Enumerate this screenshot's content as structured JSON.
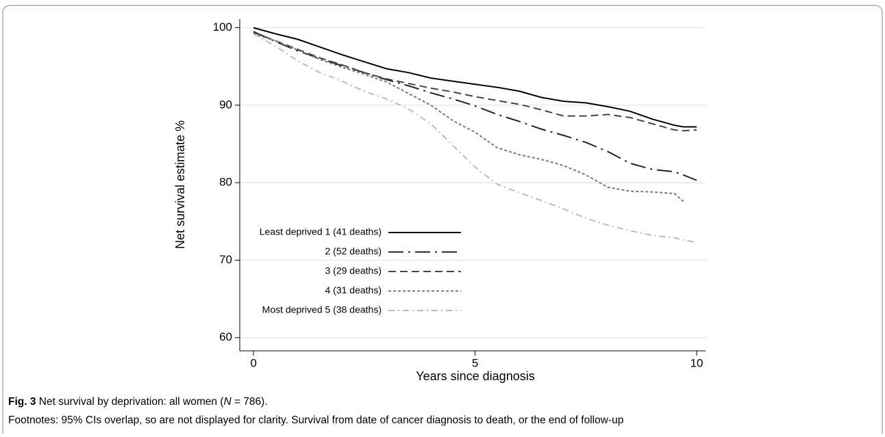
{
  "chart_data": {
    "type": "line",
    "xlabel": "Years since diagnosis",
    "ylabel": "Net survival estimate %",
    "x": [
      0,
      0.5,
      1,
      1.5,
      2,
      2.5,
      3,
      3.5,
      4,
      4.5,
      5,
      5.5,
      6,
      6.5,
      7,
      7.5,
      8,
      8.5,
      9,
      9.5,
      9.7,
      10
    ],
    "series": [
      {
        "name": "Least deprived 1 (41 deaths)",
        "color": "#000000",
        "values": [
          100,
          99.2,
          98.5,
          97.5,
          96.5,
          95.6,
          94.7,
          94.2,
          93.5,
          93.1,
          92.7,
          92.3,
          91.8,
          91,
          90.5,
          90.3,
          89.8,
          89.2,
          88.2,
          87.4,
          87.2,
          87.2
        ]
      },
      {
        "name": "2 (52 deaths)",
        "color": "#222222",
        "values": [
          99.5,
          98.2,
          97,
          96,
          95.1,
          94.2,
          93.3,
          92.5,
          91.6,
          90.8,
          89.9,
          88.8,
          87.9,
          86.9,
          86.1,
          85.2,
          84,
          82.5,
          81.7,
          81.4,
          81,
          80.3
        ]
      },
      {
        "name": "3 (29 deaths)",
        "color": "#444444",
        "values": [
          99.4,
          98.3,
          97.2,
          96.1,
          95.2,
          94.2,
          93.4,
          92.8,
          92.2,
          91.7,
          91.1,
          90.6,
          90.1,
          89.4,
          88.6,
          88.6,
          88.8,
          88.4,
          87.6,
          86.8,
          86.7,
          86.8
        ]
      },
      {
        "name": "4 (31 deaths)",
        "color": "#777777",
        "values": [
          99.2,
          98.3,
          97.1,
          95.9,
          94.9,
          94,
          93,
          91.5,
          90,
          88,
          86.5,
          84.5,
          83.6,
          83,
          82.2,
          81,
          79.4,
          78.9,
          78.8,
          78.6,
          77.6,
          null
        ]
      },
      {
        "name": "Most deprived 5 (38 deaths)",
        "color": "#bbbbbb",
        "values": [
          99.2,
          97.6,
          95.7,
          94.2,
          93.1,
          91.8,
          90.8,
          89.5,
          87.6,
          84.8,
          82,
          79.8,
          78.7,
          77.7,
          76.6,
          75.4,
          74.5,
          73.8,
          73.2,
          72.9,
          72.6,
          72.3
        ]
      }
    ],
    "xlim": [
      -0.31,
      10.2
    ],
    "ylim": [
      58.3,
      101.1
    ],
    "xticks": [
      0,
      5,
      10
    ],
    "yticks": [
      60,
      70,
      80,
      90,
      100
    ],
    "grid": true,
    "legend": "lower left"
  },
  "caption": {
    "label": "Fig. 3",
    "text": "Net survival by deprivation: all women (",
    "n_symbol": "N",
    "n_text": " = 786).",
    "footnote": "Footnotes: 95% CIs overlap, so are not displayed for clarity. Survival from date of cancer diagnosis to death, or the end of follow-up"
  }
}
